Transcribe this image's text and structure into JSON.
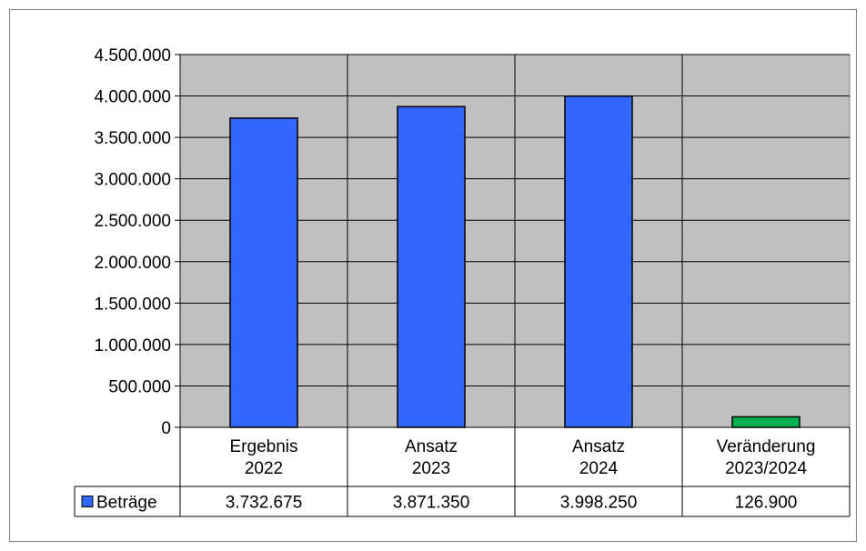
{
  "chart_data": {
    "type": "bar",
    "categories": [
      [
        "Ergebnis",
        "2022"
      ],
      [
        "Ansatz",
        "2023"
      ],
      [
        "Ansatz",
        "2024"
      ],
      [
        "Veränderung",
        "2023/2024"
      ]
    ],
    "series": [
      {
        "name": "Beträge",
        "values": [
          3732675,
          3871350,
          3998250,
          126900
        ],
        "value_labels": [
          "3.732.675",
          "3.871.350",
          "3.998.250",
          "126.900"
        ]
      }
    ],
    "bar_colors": [
      "#3366ff",
      "#3366ff",
      "#3366ff",
      "#00b050"
    ],
    "plot_background": "#c0c0c0",
    "y_ticks": [
      0,
      500000,
      1000000,
      1500000,
      2000000,
      2500000,
      3000000,
      3500000,
      4000000,
      4500000
    ],
    "y_tick_labels": [
      "0",
      "500.000",
      "1.000.000",
      "1.500.000",
      "2.000.000",
      "2.500.000",
      "3.000.000",
      "3.500.000",
      "4.000.000",
      "4.500.000"
    ],
    "ylim": [
      0,
      4500000
    ],
    "grid": true,
    "legend": "data-table"
  }
}
